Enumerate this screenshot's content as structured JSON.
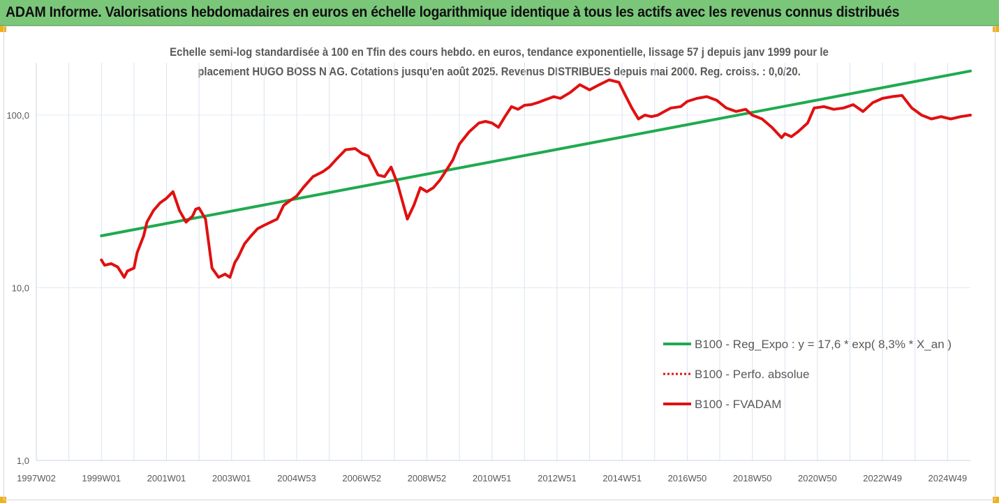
{
  "header": {
    "title": "ADAM Informe. Valorisations hebdomadaires en euros en échelle logarithmique identique à tous les actifs avec les revenus connus distribués"
  },
  "chart_data": {
    "type": "line",
    "title_line1": "Echelle semi-log standardisée à 100 en Tfin des cours hebdo. en euros, tendance exponentielle, lissage 57 j depuis janv 1999 pour le",
    "title_line2": "placement HUGO BOSS N AG. Cotations jusqu'en août 2025. Revenus DISTRIBUES depuis mai 2000. Reg. croiss. : 0,0/20.",
    "y_scale": "log",
    "ylim": [
      1,
      200
    ],
    "xlim": [
      1997.0,
      2025.7
    ],
    "y_ticks": [
      {
        "value": 1,
        "label": "1,0"
      },
      {
        "value": 10,
        "label": "10,0"
      },
      {
        "value": 100,
        "label": "100,0"
      }
    ],
    "x_ticks": [
      {
        "value": 1997.0,
        "label": "1997W02"
      },
      {
        "value": 1999.0,
        "label": "1999W01"
      },
      {
        "value": 2001.0,
        "label": "2001W01"
      },
      {
        "value": 2003.0,
        "label": "2003W01"
      },
      {
        "value": 2005.0,
        "label": "2004W53"
      },
      {
        "value": 2007.0,
        "label": "2006W52"
      },
      {
        "value": 2009.0,
        "label": "2008W52"
      },
      {
        "value": 2011.0,
        "label": "2010W51"
      },
      {
        "value": 2013.0,
        "label": "2012W51"
      },
      {
        "value": 2015.0,
        "label": "2014W51"
      },
      {
        "value": 2017.0,
        "label": "2016W50"
      },
      {
        "value": 2019.0,
        "label": "2018W50"
      },
      {
        "value": 2021.0,
        "label": "2020W50"
      },
      {
        "value": 2023.0,
        "label": "2022W49"
      },
      {
        "value": 2025.0,
        "label": "2024W49"
      }
    ],
    "grid": "vertical",
    "legend_position": "lower-right",
    "series": [
      {
        "name": "B100 - Reg_Expo : y = 17,6 * exp( 8,3% *  X_an )",
        "color": "#1faa4f",
        "style": "solid-thick",
        "x": [
          1999.0,
          2025.7
        ],
        "y": [
          20,
          180
        ]
      },
      {
        "name": "B100 - Perfo. absolue",
        "color": "#e01010",
        "style": "dotted",
        "x": [],
        "y": []
      },
      {
        "name": "B100 - FVADAM",
        "color": "#e01010",
        "style": "solid-thick",
        "x": [
          1999.0,
          1999.1,
          1999.3,
          1999.5,
          1999.7,
          1999.8,
          2000.0,
          2000.1,
          2000.3,
          2000.4,
          2000.6,
          2000.8,
          2001.0,
          2001.2,
          2001.4,
          2001.6,
          2001.8,
          2001.9,
          2002.0,
          2002.2,
          2002.4,
          2002.6,
          2002.8,
          2002.95,
          2003.1,
          2003.2,
          2003.4,
          2003.6,
          2003.8,
          2004.0,
          2004.2,
          2004.4,
          2004.6,
          2004.8,
          2005.0,
          2005.2,
          2005.5,
          2005.8,
          2006.0,
          2006.2,
          2006.5,
          2006.8,
          2007.0,
          2007.2,
          2007.5,
          2007.7,
          2007.9,
          2008.1,
          2008.4,
          2008.6,
          2008.8,
          2009.0,
          2009.2,
          2009.4,
          2009.6,
          2009.8,
          2010.0,
          2010.3,
          2010.6,
          2010.8,
          2011.0,
          2011.2,
          2011.4,
          2011.6,
          2011.8,
          2012.0,
          2012.2,
          2012.4,
          2012.6,
          2012.9,
          2013.1,
          2013.4,
          2013.7,
          2014.0,
          2014.3,
          2014.6,
          2014.9,
          2015.1,
          2015.3,
          2015.5,
          2015.7,
          2015.9,
          2016.1,
          2016.3,
          2016.5,
          2016.8,
          2017.0,
          2017.3,
          2017.6,
          2017.9,
          2018.2,
          2018.5,
          2018.8,
          2019.0,
          2019.3,
          2019.6,
          2019.9,
          2020.0,
          2020.2,
          2020.4,
          2020.7,
          2020.9,
          2021.2,
          2021.5,
          2021.8,
          2022.1,
          2022.4,
          2022.7,
          2023.0,
          2023.3,
          2023.6,
          2023.9,
          2024.2,
          2024.5,
          2024.8,
          2025.1,
          2025.4,
          2025.7
        ],
        "y": [
          14.5,
          13.5,
          13.8,
          13.2,
          11.5,
          12.5,
          13,
          16,
          20,
          24,
          28,
          31,
          33,
          36,
          28,
          24,
          26,
          28.5,
          29,
          25,
          13,
          11.5,
          12,
          11.5,
          14,
          15,
          18,
          20,
          22,
          23,
          24,
          25,
          30,
          32,
          34,
          38,
          44,
          47,
          50,
          55,
          63,
          64,
          60,
          58,
          45,
          44,
          50,
          40,
          25,
          30,
          38,
          36,
          38,
          42,
          48,
          55,
          68,
          80,
          90,
          92,
          90,
          85,
          98,
          112,
          108,
          114,
          115,
          118,
          122,
          128,
          125,
          135,
          150,
          140,
          150,
          160,
          155,
          130,
          110,
          95,
          100,
          98,
          100,
          105,
          110,
          112,
          120,
          125,
          128,
          122,
          110,
          105,
          108,
          100,
          95,
          85,
          74,
          78,
          75,
          80,
          90,
          110,
          112,
          108,
          110,
          115,
          105,
          118,
          125,
          128,
          130,
          110,
          100,
          95,
          98,
          95,
          98,
          100
        ]
      }
    ]
  }
}
